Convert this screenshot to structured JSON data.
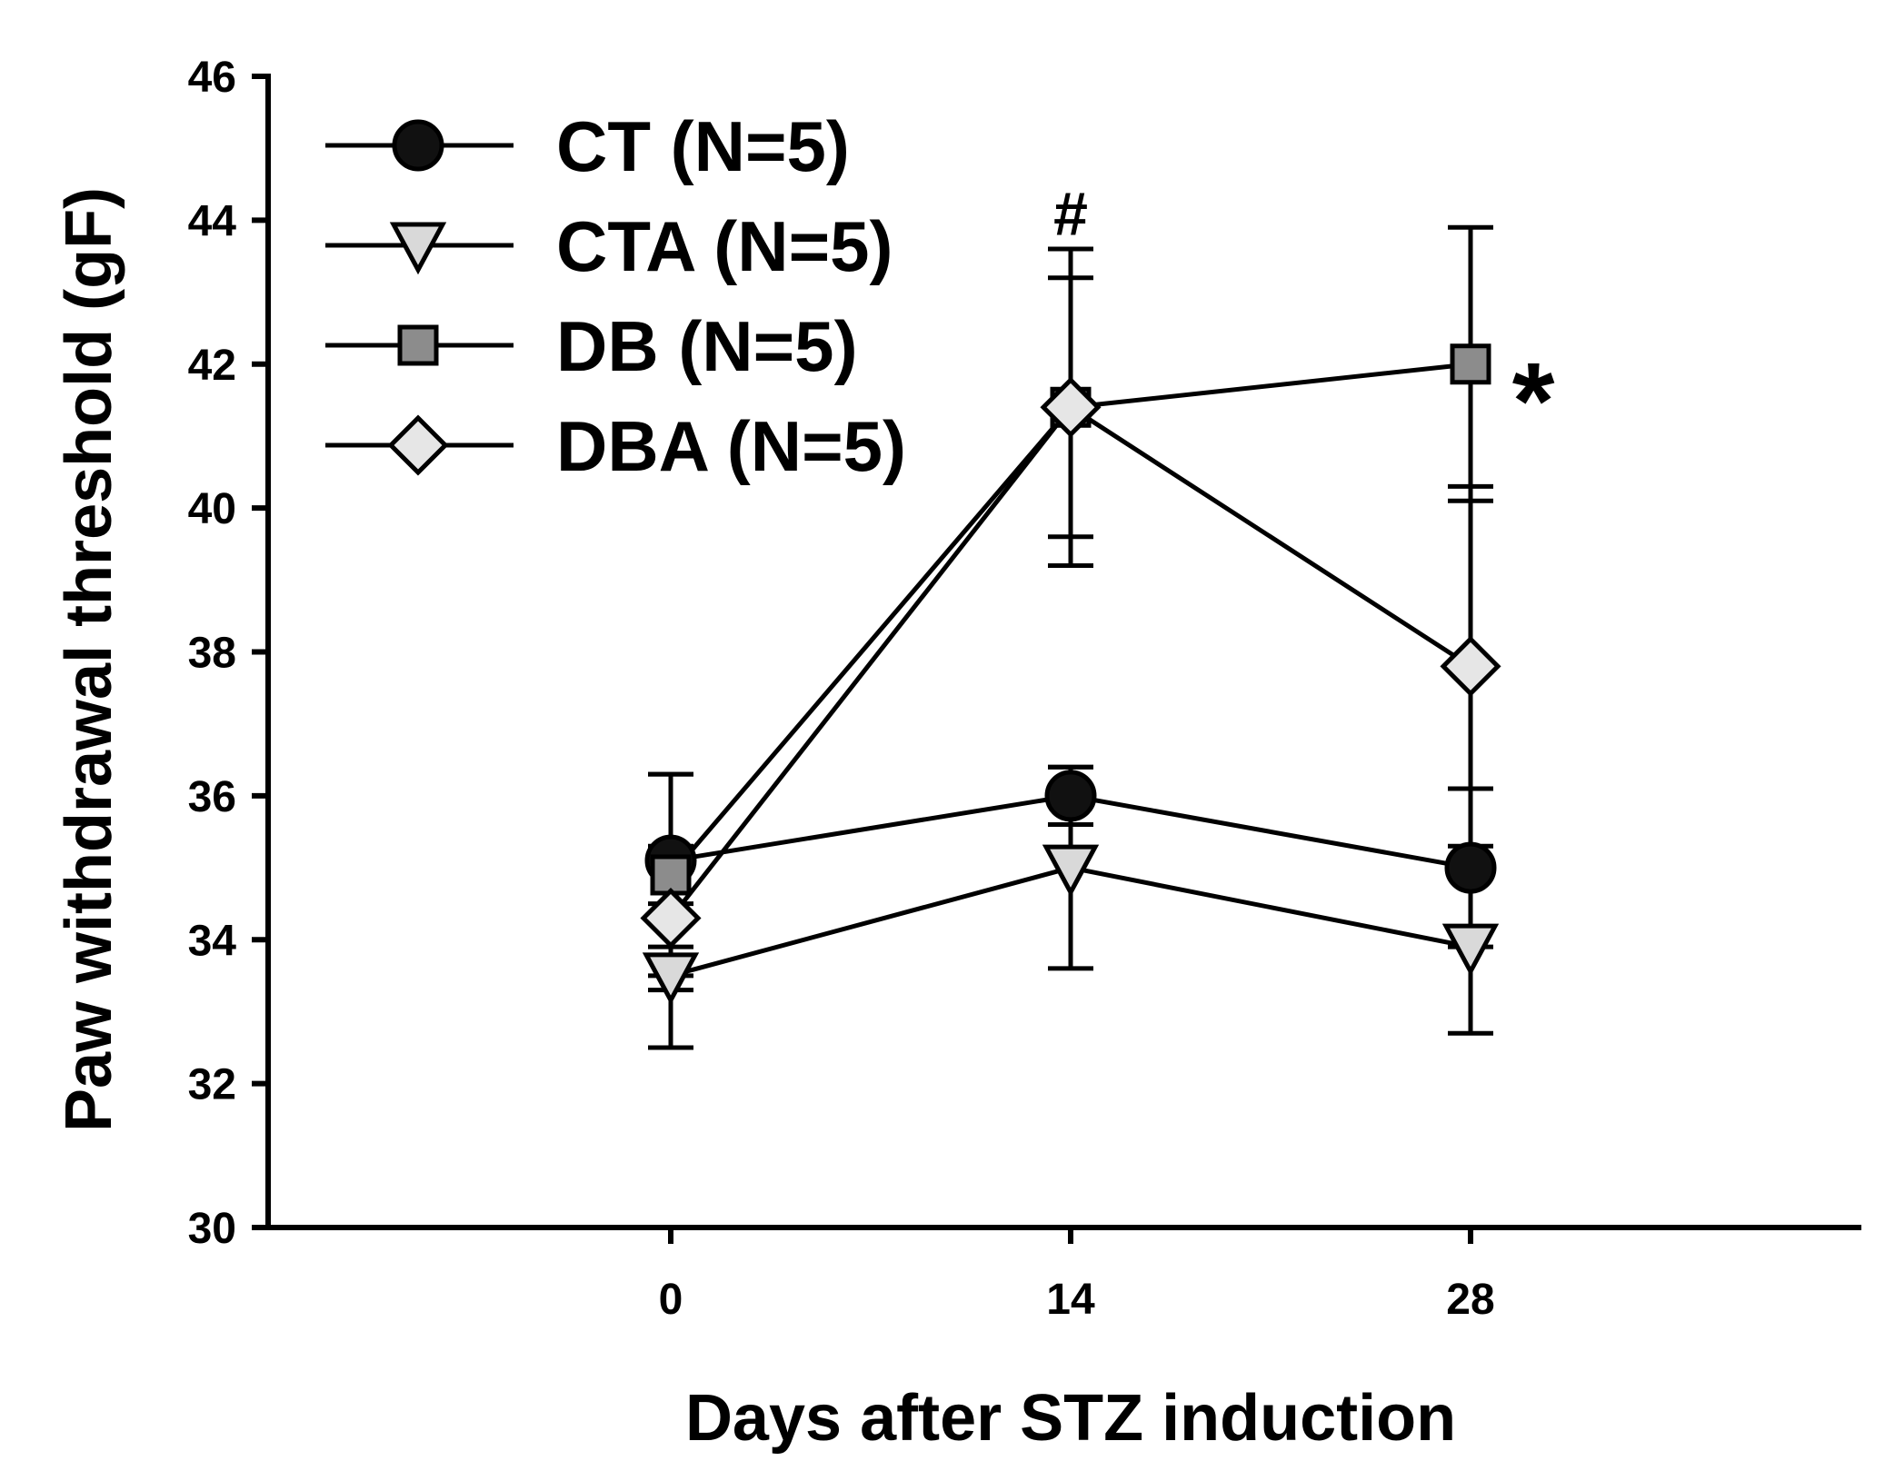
{
  "chart_data": {
    "type": "line",
    "title": "",
    "xlabel": "Days after STZ induction",
    "ylabel": "Paw withdrawal threshold (gF)",
    "x": [
      0,
      14,
      28
    ],
    "x_ticks": [
      "0",
      "14",
      "28"
    ],
    "ylim": [
      30,
      46
    ],
    "y_ticks": [
      "30",
      "32",
      "34",
      "36",
      "38",
      "40",
      "42",
      "44",
      "46"
    ],
    "legend_position": "top-left",
    "grid": false,
    "series": [
      {
        "name": "CT (N=5)",
        "marker": "circle",
        "fill": "#111111",
        "values": [
          35.1,
          36.0,
          35.0
        ],
        "errors": [
          1.2,
          0.4,
          1.1
        ]
      },
      {
        "name": "CTA (N=5)",
        "marker": "triangle-down",
        "fill": "#d9d9d9",
        "values": [
          33.5,
          35.0,
          33.9
        ],
        "errors": [
          1.0,
          1.4,
          1.2
        ]
      },
      {
        "name": "DB (N=5)",
        "marker": "square",
        "fill": "#8c8c8c",
        "values": [
          34.9,
          41.4,
          42.0
        ],
        "errors": [
          1.4,
          1.8,
          1.9
        ]
      },
      {
        "name": "DBA (N=5)",
        "marker": "diamond",
        "fill": "#e6e6e6",
        "values": [
          34.3,
          41.4,
          37.8
        ],
        "errors": [
          1.0,
          2.2,
          2.5
        ]
      }
    ],
    "annotations": [
      {
        "text": "#",
        "x": 14,
        "y": 44.1,
        "size": "medium"
      },
      {
        "text": "*",
        "x": 30.2,
        "y": 41.5,
        "size": "large"
      }
    ]
  }
}
